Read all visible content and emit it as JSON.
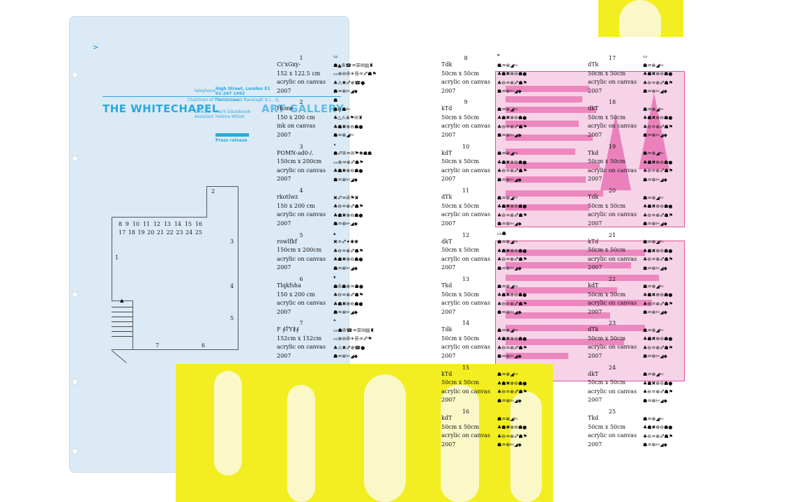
{
  "letterhead": {
    "telephone_label": "telephone",
    "address": "High Street, London E1",
    "phone": "01-247 1492",
    "chairman_label": "Chairman of the trustees",
    "chairman_name": "The Viscount Ranelagh d.c., Q.",
    "title_left": "THE WHITECHAPEL",
    "title_right": "ART GALLERY",
    "director_label": "Director",
    "director_name": "Mark Glazebrook",
    "assistant_label": "Assistant",
    "assistant_name": "Helena Witzer",
    "press_release": "Press release"
  },
  "floor_plan": {
    "room_numbers_row1": [
      "8",
      "9",
      "10",
      "11",
      "12",
      "13",
      "14",
      "15",
      "16"
    ],
    "room_numbers_row2": [
      "17",
      "18",
      "19",
      "20",
      "21",
      "22",
      "23",
      "24",
      "25"
    ],
    "label_1": "1",
    "label_2": "2",
    "label_3": "3",
    "label_4": "4",
    "label_5": "5",
    "label_6": "6",
    "label_7": "7"
  },
  "entries": [
    {
      "num": "1",
      "title": "C('xGxy-",
      "size": "152 x 122.5 cm",
      "medium": "acrylic on canvas",
      "year": "2007",
      "symbols": [
        "▭",
        "☗▲✇☎♒☰✉▤♜",
        "▭⊕⊖✇☀☰♒♐☗⚑",
        "♣⚠✖♐⊕☎●",
        "☗♒⊗✄◢◆"
      ]
    },
    {
      "num": "2",
      "title": "Home",
      "size": "150 x 200 cm",
      "medium": "ink on canvas",
      "year": "2007",
      "symbols": [
        "☗",
        "☗⊖☗✄",
        "♣△⚠⊗⚑✉♜",
        "♣☗✖⊕⊖☗●",
        "☗♒⊗◢✄"
      ]
    },
    {
      "num": "3",
      "title": "POMN-ad0-/.",
      "size": "150cm x 200cm",
      "medium": "acrylic on canvas",
      "year": "2007",
      "symbols": [
        "•",
        "☗♐✇♒✉⚑✱☗☗",
        "▭⊕♒⊗♐☗⚑",
        "♣☗✖⊕⊖☗●",
        "☗♒⊗✄◢◆"
      ]
    },
    {
      "num": "4",
      "title": "rkotlwz",
      "size": "150 x 200 cm",
      "medium": "acrylic on canvas",
      "year": "2007",
      "symbols": [
        "",
        "✖♐♒✇⚑✖",
        "♣⊖♒⊗♐☗⚑",
        "♣☗✖⊕⊖☗●",
        "☗♒⊗✄◢◆"
      ]
    },
    {
      "num": "5",
      "title": "rowlfkf",
      "size": "150cm x 200cm",
      "medium": "acrylic on canvas",
      "year": "2007",
      "symbols": [
        "▴",
        "✖♒♐✦✱✱",
        "♣⊖♒⊗♐☗⚑",
        "♣☗✖⊕⊖☗●",
        "☗♒⊗✄◢◆"
      ]
    },
    {
      "num": "6",
      "title": "Tlqkfsha",
      "size": "150 x 200 cm",
      "medium": "acrylic on canvas",
      "year": "2007",
      "symbols": [
        "▾",
        "☗✇☗⊕♒☗●",
        "♣⊖♒⊗♐☗⚑",
        "♣☗✖⊕⊖☗●",
        "☗♒⊗✄◢◆"
      ]
    },
    {
      "num": "7",
      "title": "F ∮∜Y∦∮",
      "size": "152cm x 152cm",
      "medium": "acrylic on canvas",
      "year": "2007",
      "symbols": [
        "❝",
        "▭☗✇☎♒☰✉▤♜",
        "▭⊕⊖✇☀☰♒♐⚑",
        "♣⚠✖♐⊕☎●",
        "☗♒⊗✄◢◆"
      ]
    },
    {
      "num": "8",
      "title": "Tdk",
      "size": "50cm x 50cm",
      "medium": "acrylic on canvas",
      "year": "2007",
      "symbols": [
        "❞",
        "☗♒⊗◢✄",
        "♣☗✖⊕⊖☗●",
        "♣⊖♒⊗♐☗⚑",
        "☗♒⊗✄◢◆"
      ]
    },
    {
      "num": "9",
      "title": "kTd",
      "size": "50cm x 50cm",
      "medium": "acrylic on canvas",
      "year": "2007",
      "symbols": [
        "",
        "☗♒⊗◢✄",
        "♣☗✖⊕⊖☗●",
        "♣⊖♒⊗♐☗⚑",
        "☗♒⊗✄◢◆"
      ]
    },
    {
      "num": "10",
      "title": "kdT",
      "size": "50cm x 50cm",
      "medium": "acrylic on canvas",
      "year": "2007",
      "symbols": [
        "",
        "☗♒⊗◢✄",
        "♣☗✖⊕⊖☗●",
        "♣⊖♒⊗♐☗⚑",
        "☗♒⊗✄◢◆"
      ]
    },
    {
      "num": "11",
      "title": "dTk",
      "size": "50cm x 50cm",
      "medium": "acrylic on canvas",
      "year": "2007",
      "symbols": [
        "",
        "☗♒⊗◢✄",
        "♣☗✖⊕⊖☗●",
        "♣⊖♒⊗♐☗⚑",
        "☗♒⊗✄◢◆"
      ]
    },
    {
      "num": "12",
      "title": "dkT",
      "size": "50cm x 50cm",
      "medium": "acrylic on canvas",
      "year": "2007",
      "symbols": [
        "▭☗",
        "☗♒⊗◢✄",
        "♣☗✖⊕⊖☗●",
        "♣⊖♒⊗♐☗⚑",
        "☗♒⊗✄◢◆"
      ]
    },
    {
      "num": "13",
      "title": "Tkd",
      "size": "50cm x 50cm",
      "medium": "acrylic on canvas",
      "year": "2007",
      "symbols": [
        "",
        "☗♒⊗◢✄",
        "♣☗✖⊕⊖☗●",
        "♣⊖♒⊗♐☗⚑",
        "☗♒⊗✄◢◆"
      ]
    },
    {
      "num": "14",
      "title": "Tdk",
      "size": "50cm x 50cm",
      "medium": "acrylic on canvas",
      "year": "2007",
      "symbols": [
        "",
        "☗♒⊗◢✄",
        "♣☗✖⊕⊖☗●",
        "♣⊖♒⊗♐☗⚑",
        "☗♒⊗✄◢◆"
      ]
    },
    {
      "num": "15",
      "title": "kTd",
      "size": "50cm x 50cm",
      "medium": "acrylic on canvas",
      "year": "2007",
      "symbols": [
        "",
        "☗♒⊗◢✄",
        "♣☗✖⊕⊖☗●",
        "♣⊖♒⊗♐☗⚑",
        "☗♒⊗✄◢◆"
      ]
    },
    {
      "num": "16",
      "title": "kdT",
      "size": "50cm x 50cm",
      "medium": "acrylic on canvas",
      "year": "2007",
      "symbols": [
        "",
        "☗♒⊗◢✄",
        "♣☗✖⊕⊖☗●",
        "♣⊖♒⊗♐☗⚑",
        "☗♒⊗✄◢◆"
      ]
    },
    {
      "num": "17",
      "title": "dTk",
      "size": "50cm x 50cm",
      "medium": "acrylic on canvas",
      "year": "2007",
      "symbols": [
        "▭",
        "☗♒⊗◢✄",
        "♣☗✖⊕⊖☗●",
        "♣⊖♒⊗♐☗⚑",
        "☗♒⊗✄◢◆"
      ]
    },
    {
      "num": "18",
      "title": "dkT",
      "size": "50cm x 50cm",
      "medium": "acrylic on canvas",
      "year": "2007",
      "symbols": [
        "",
        "☗♒⊗◢✄",
        "♣☗✖⊕⊖☗●",
        "♣⊖♒⊗♐☗⚑",
        "☗♒⊗✄◢◆"
      ]
    },
    {
      "num": "19",
      "title": "Tkd",
      "size": "50cm x 50cm",
      "medium": "acrylic on canvas",
      "year": "2007",
      "symbols": [
        "",
        "☗♒⊗◢✄",
        "♣☗✖⊕⊖☗●",
        "♣⊖♒⊗♐☗⚑",
        "☗♒⊗✄◢◆"
      ]
    },
    {
      "num": "20",
      "title": "Tdk",
      "size": "50cm x 50cm",
      "medium": "acrylic on canvas",
      "year": "2007",
      "symbols": [
        "",
        "☗♒⊗◢✄",
        "♣☗✖⊕⊖☗●",
        "♣⊖♒⊗♐☗⚑",
        "☗♒⊗✄◢◆"
      ]
    },
    {
      "num": "21",
      "title": "kTd",
      "size": "50cm x 50cm",
      "medium": "acrylic on canvas",
      "year": "2007",
      "symbols": [
        "",
        "☗♒⊗◢✄",
        "♣☗✖⊕⊖☗●",
        "♣⊖♒⊗♐☗⚑",
        "☗♒⊗✄◢◆"
      ]
    },
    {
      "num": "22",
      "title": "kdT",
      "size": "50cm x 50cm",
      "medium": "acrylic on canvas",
      "year": "2007",
      "symbols": [
        "",
        "☗♒⊗◢✄",
        "♣☗✖⊕⊖☗●",
        "♣⊖♒⊗♐☗⚑",
        "☗♒⊗✄◢◆"
      ]
    },
    {
      "num": "23",
      "title": "dTk",
      "size": "50cm x 50cm",
      "medium": "acrylic on canvas",
      "year": "2007",
      "symbols": [
        "",
        "☗♒⊗◢✄",
        "♣☗✖⊕⊖☗●",
        "♣⊖♒⊗♐☗⚑",
        "☗♒⊗✄◢◆"
      ]
    },
    {
      "num": "24",
      "title": "dkT",
      "size": "50cm x 50cm",
      "medium": "acrylic on canvas",
      "year": "2007",
      "symbols": [
        "",
        "☗♒⊗◢✄",
        "♣☗✖⊕⊖☗●",
        "♣⊖♒⊗♐☗⚑",
        "☗♒⊗✄◢◆"
      ]
    },
    {
      "num": "25",
      "title": "Tkd",
      "size": "50cm x 50cm",
      "medium": "acrylic on canvas",
      "year": "2007",
      "symbols": [
        "",
        "☗♒⊗◢✄",
        "♣☗✖⊕⊖☗●",
        "♣⊖♒⊗♐☗⚑",
        "☗♒⊗✄◢◆"
      ]
    }
  ],
  "colors": {
    "cyan": "#29a9e0",
    "magenta": "#e0509a",
    "yellow": "#f2ee21",
    "paper": "#dceaf5"
  }
}
